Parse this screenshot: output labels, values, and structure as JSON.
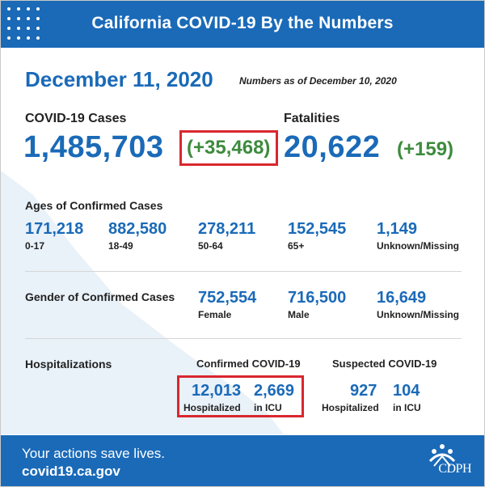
{
  "header": {
    "title": "California COVID-19 By the Numbers"
  },
  "date": "December 11, 2020",
  "as_of": "Numbers as of December 10, 2020",
  "cases": {
    "label": "COVID-19 Cases",
    "total": "1,485,703",
    "delta": "(+35,468)"
  },
  "fatalities": {
    "label": "Fatalities",
    "total": "20,622",
    "delta": "(+159)"
  },
  "ages": {
    "title": "Ages of Confirmed Cases",
    "groups": [
      {
        "value": "171,218",
        "label": "0-17"
      },
      {
        "value": "882,580",
        "label": "18-49"
      },
      {
        "value": "278,211",
        "label": "50-64"
      },
      {
        "value": "152,545",
        "label": "65+"
      },
      {
        "value": "1,149",
        "label": "Unknown/Missing"
      }
    ]
  },
  "gender": {
    "title": "Gender of Confirmed Cases",
    "groups": [
      {
        "value": "752,554",
        "label": "Female"
      },
      {
        "value": "716,500",
        "label": "Male"
      },
      {
        "value": "16,649",
        "label": "Unknown/Missing"
      }
    ]
  },
  "hospitalizations": {
    "title": "Hospitalizations",
    "confirmed": {
      "title": "Confirmed COVID-19",
      "hospitalized": {
        "value": "12,013",
        "label": "Hospitalized"
      },
      "icu": {
        "value": "2,669",
        "label": "in ICU"
      }
    },
    "suspected": {
      "title": "Suspected COVID-19",
      "hospitalized": {
        "value": "927",
        "label": "Hospitalized"
      },
      "icu": {
        "value": "104",
        "label": "in ICU"
      }
    }
  },
  "footer": {
    "tagline": "Your actions save lives.",
    "url": "covid19.ca.gov",
    "logo_text": "CDPH"
  },
  "colors": {
    "brand_blue": "#1a6ab8",
    "delta_green": "#3d8b3d",
    "highlight_red": "#d9272e",
    "map_tint": "#e9f1f9"
  }
}
